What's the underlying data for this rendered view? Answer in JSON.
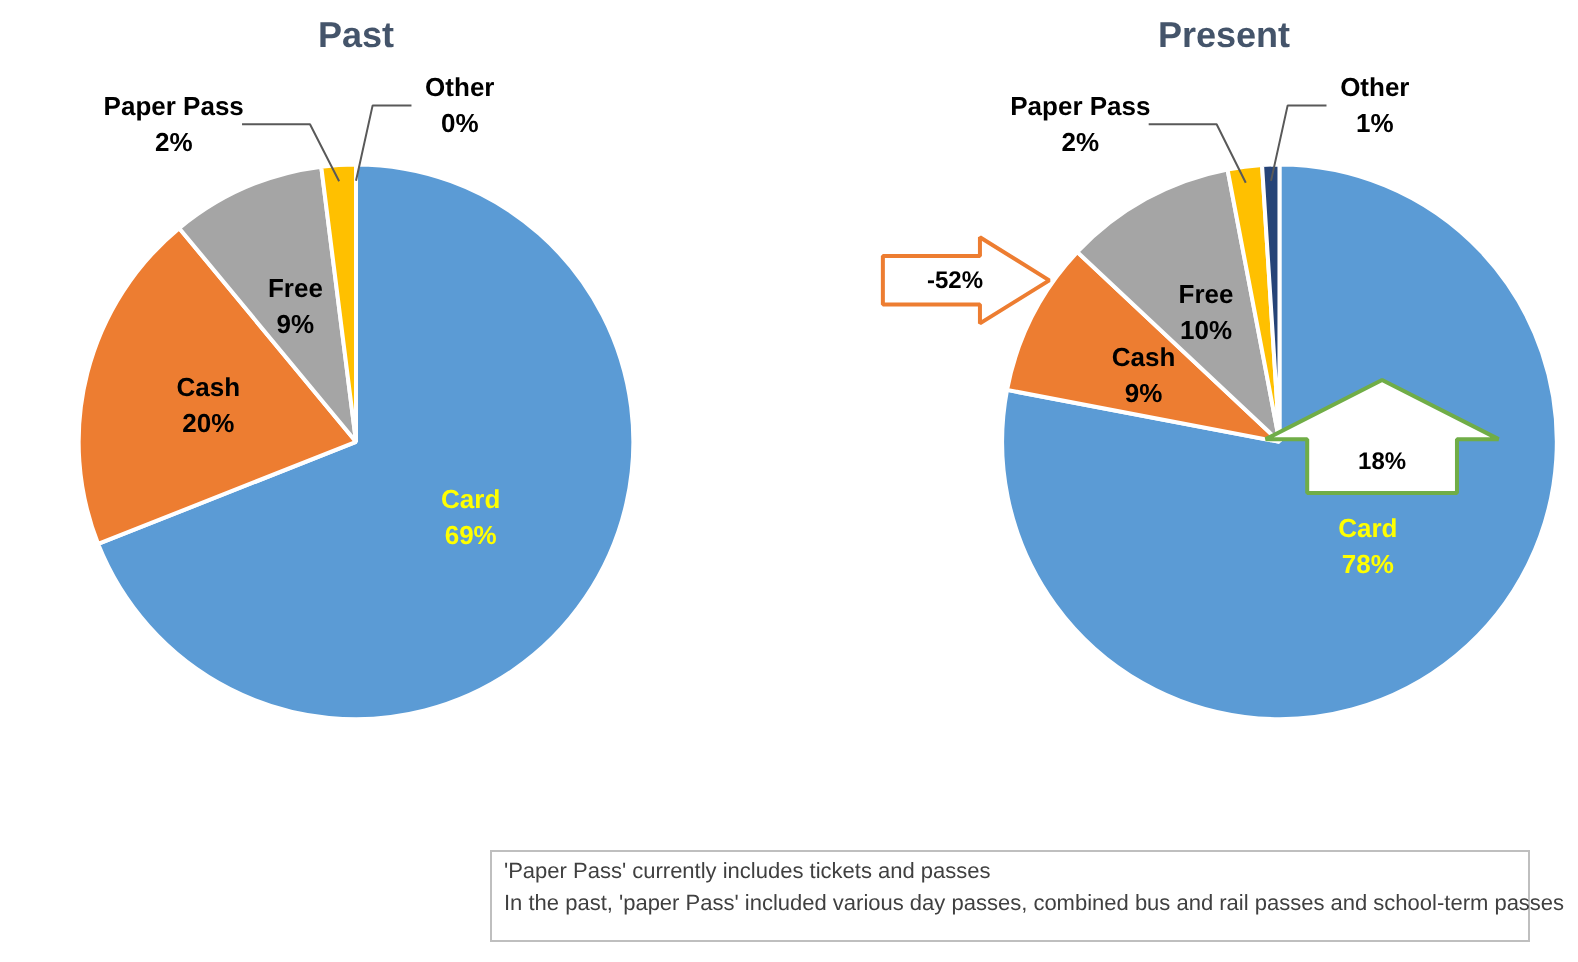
{
  "chart_data": [
    {
      "type": "pie",
      "title": "Past",
      "categories": [
        "Card",
        "Cash",
        "Free",
        "Paper Pass",
        "Other"
      ],
      "values": [
        69,
        20,
        9,
        2,
        0
      ],
      "value_labels": [
        "69%",
        "20%",
        "9%",
        "2%",
        "0%"
      ],
      "colors": [
        "#5b9bd5",
        "#ed7d31",
        "#a5a5a5",
        "#ffc000",
        "#264478"
      ]
    },
    {
      "type": "pie",
      "title": "Present",
      "categories": [
        "Card",
        "Cash",
        "Free",
        "Paper Pass",
        "Other"
      ],
      "values": [
        78,
        9,
        10,
        2,
        1
      ],
      "value_labels": [
        "78%",
        "9%",
        "10%",
        "2%",
        "1%"
      ],
      "colors": [
        "#5b9bd5",
        "#ed7d31",
        "#a5a5a5",
        "#ffc000",
        "#264478"
      ],
      "annotations": [
        "-52%",
        "18%"
      ]
    },
    {
      "type": "other",
      "annotations": [
        "'Paper Pass' currently includes tickets and passes",
        "In the past, 'paper Pass' included various  day passes, combined bus and rail passes and school-term passes"
      ]
    }
  ]
}
